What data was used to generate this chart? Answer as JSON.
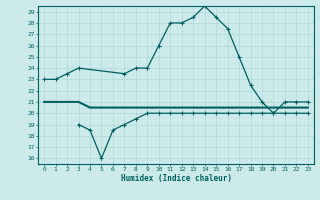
{
  "title": "",
  "xlabel": "Humidex (Indice chaleur)",
  "bg_color": "#cceaea",
  "grid_color": "#b0d8d8",
  "line_color": "#006060",
  "xlim": [
    -0.5,
    23.5
  ],
  "ylim": [
    15.5,
    29.5
  ],
  "xticks": [
    0,
    1,
    2,
    3,
    4,
    5,
    6,
    7,
    8,
    9,
    10,
    11,
    12,
    13,
    14,
    15,
    16,
    17,
    18,
    19,
    20,
    21,
    22,
    23
  ],
  "yticks": [
    16,
    17,
    18,
    19,
    20,
    21,
    22,
    23,
    24,
    25,
    26,
    27,
    28,
    29
  ],
  "series1_x": [
    0,
    1,
    2,
    3,
    7,
    8,
    9,
    10,
    11,
    12,
    13,
    14,
    15,
    16,
    17,
    18,
    19,
    20,
    21,
    22,
    23
  ],
  "series1_y": [
    23,
    23,
    23.5,
    24,
    23.5,
    24,
    24,
    26,
    28,
    28,
    28.5,
    29.5,
    28.5,
    27.5,
    25,
    22.5,
    21,
    20,
    21,
    21,
    21
  ],
  "series2_x": [
    0,
    1,
    2,
    3,
    4,
    5,
    6,
    7,
    8,
    9,
    10,
    11,
    12,
    13,
    14,
    15,
    16,
    17,
    18,
    19,
    20,
    21,
    22,
    23
  ],
  "series2_y": [
    21,
    21,
    21,
    21,
    20.5,
    20.5,
    20.5,
    20.5,
    20.5,
    20.5,
    20.5,
    20.5,
    20.5,
    20.5,
    20.5,
    20.5,
    20.5,
    20.5,
    20.5,
    20.5,
    20.5,
    20.5,
    20.5,
    20.5
  ],
  "series3_x": [
    3,
    4,
    5,
    6,
    7,
    8,
    9,
    10,
    11,
    12,
    13,
    14,
    15,
    16,
    17,
    18,
    19,
    20,
    21,
    22,
    23
  ],
  "series3_y": [
    19,
    18.5,
    16,
    18.5,
    19,
    19.5,
    20,
    20,
    20,
    20,
    20,
    20,
    20,
    20,
    20,
    20,
    20,
    20,
    20,
    20,
    20
  ]
}
